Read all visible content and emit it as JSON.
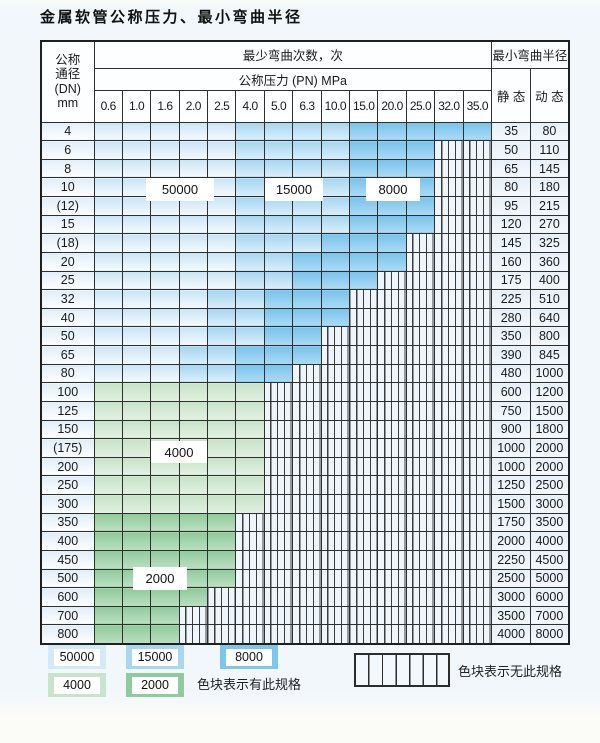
{
  "title": "金属软管公称压力、最小弯曲半径",
  "table": {
    "dn_header_lines": [
      "公称",
      "通径",
      "(DN)",
      "mm"
    ],
    "bend_times_header": "最少弯曲次数，次",
    "pressure_header": "公称压力 (PN) MPa",
    "radius_header": "最小弯曲半径",
    "static_header": "静 态",
    "dynamic_header": "动 态",
    "pressures": [
      "0.6",
      "1.0",
      "1.6",
      "2.0",
      "2.5",
      "4.0",
      "5.0",
      "6.3",
      "10.0",
      "15.0",
      "20.0",
      "25.0",
      "32.0",
      "35.0"
    ],
    "rows": [
      {
        "dn": "4",
        "zones": [
          [
            "z50",
            5
          ],
          [
            "z15",
            4
          ],
          [
            "z8",
            5
          ]
        ],
        "static": "35",
        "dynamic": "80"
      },
      {
        "dn": "6",
        "zones": [
          [
            "z50",
            5
          ],
          [
            "z15",
            4
          ],
          [
            "z8",
            3
          ],
          [
            "x",
            2
          ]
        ],
        "static": "50",
        "dynamic": "110"
      },
      {
        "dn": "8",
        "zones": [
          [
            "z50",
            5
          ],
          [
            "z15",
            4
          ],
          [
            "z8",
            3
          ],
          [
            "x",
            2
          ]
        ],
        "static": "65",
        "dynamic": "145"
      },
      {
        "dn": "10",
        "zones": [
          [
            "z50",
            5
          ],
          [
            "z15",
            4
          ],
          [
            "z8",
            3
          ],
          [
            "x",
            2
          ]
        ],
        "static": "80",
        "dynamic": "180"
      },
      {
        "dn": "(12)",
        "zones": [
          [
            "z50",
            5
          ],
          [
            "z15",
            4
          ],
          [
            "z8",
            3
          ],
          [
            "x",
            2
          ]
        ],
        "static": "95",
        "dynamic": "215"
      },
      {
        "dn": "15",
        "zones": [
          [
            "z50",
            5
          ],
          [
            "z15",
            4
          ],
          [
            "z8",
            3
          ],
          [
            "x",
            2
          ]
        ],
        "static": "120",
        "dynamic": "270"
      },
      {
        "dn": "(18)",
        "zones": [
          [
            "z50",
            5
          ],
          [
            "z15",
            3
          ],
          [
            "z8",
            3
          ],
          [
            "x",
            3
          ]
        ],
        "static": "145",
        "dynamic": "325"
      },
      {
        "dn": "20",
        "zones": [
          [
            "z50",
            5
          ],
          [
            "z15",
            2
          ],
          [
            "z8",
            4
          ],
          [
            "x",
            3
          ]
        ],
        "static": "160",
        "dynamic": "360"
      },
      {
        "dn": "25",
        "zones": [
          [
            "z50",
            5
          ],
          [
            "z15",
            2
          ],
          [
            "z8",
            3
          ],
          [
            "x",
            4
          ]
        ],
        "static": "175",
        "dynamic": "400"
      },
      {
        "dn": "32",
        "zones": [
          [
            "z50",
            4
          ],
          [
            "z15",
            2
          ],
          [
            "z8",
            3
          ],
          [
            "x",
            5
          ]
        ],
        "static": "225",
        "dynamic": "510"
      },
      {
        "dn": "40",
        "zones": [
          [
            "z50",
            4
          ],
          [
            "z15",
            2
          ],
          [
            "z8",
            3
          ],
          [
            "x",
            5
          ]
        ],
        "static": "280",
        "dynamic": "640"
      },
      {
        "dn": "50",
        "zones": [
          [
            "z50",
            4
          ],
          [
            "z15",
            2
          ],
          [
            "z8",
            2
          ],
          [
            "x",
            6
          ]
        ],
        "static": "350",
        "dynamic": "800"
      },
      {
        "dn": "65",
        "zones": [
          [
            "z50",
            3
          ],
          [
            "z15",
            2
          ],
          [
            "z8",
            3
          ],
          [
            "x",
            6
          ]
        ],
        "static": "390",
        "dynamic": "845"
      },
      {
        "dn": "80",
        "zones": [
          [
            "z50",
            3
          ],
          [
            "z15",
            2
          ],
          [
            "z8",
            2
          ],
          [
            "x",
            7
          ]
        ],
        "static": "480",
        "dynamic": "1000"
      },
      {
        "dn": "100",
        "zones": [
          [
            "g4",
            6
          ],
          [
            "x",
            8
          ]
        ],
        "static": "600",
        "dynamic": "1200"
      },
      {
        "dn": "125",
        "zones": [
          [
            "g4",
            6
          ],
          [
            "x",
            8
          ]
        ],
        "static": "750",
        "dynamic": "1500"
      },
      {
        "dn": "150",
        "zones": [
          [
            "g4",
            6
          ],
          [
            "x",
            8
          ]
        ],
        "static": "900",
        "dynamic": "1800"
      },
      {
        "dn": "(175)",
        "zones": [
          [
            "g4",
            6
          ],
          [
            "x",
            8
          ]
        ],
        "static": "1000",
        "dynamic": "2000"
      },
      {
        "dn": "200",
        "zones": [
          [
            "g4",
            6
          ],
          [
            "x",
            8
          ]
        ],
        "static": "1000",
        "dynamic": "2000"
      },
      {
        "dn": "250",
        "zones": [
          [
            "g4",
            6
          ],
          [
            "x",
            8
          ]
        ],
        "static": "1250",
        "dynamic": "2500"
      },
      {
        "dn": "300",
        "zones": [
          [
            "g4",
            6
          ],
          [
            "x",
            8
          ]
        ],
        "static": "1500",
        "dynamic": "3000"
      },
      {
        "dn": "350",
        "zones": [
          [
            "g2",
            5
          ],
          [
            "x",
            9
          ]
        ],
        "static": "1750",
        "dynamic": "3500"
      },
      {
        "dn": "400",
        "zones": [
          [
            "g2",
            5
          ],
          [
            "x",
            9
          ]
        ],
        "static": "2000",
        "dynamic": "4000"
      },
      {
        "dn": "450",
        "zones": [
          [
            "g2",
            5
          ],
          [
            "x",
            9
          ]
        ],
        "static": "2250",
        "dynamic": "4500"
      },
      {
        "dn": "500",
        "zones": [
          [
            "g2",
            5
          ],
          [
            "x",
            9
          ]
        ],
        "static": "2500",
        "dynamic": "5000"
      },
      {
        "dn": "600",
        "zones": [
          [
            "g2",
            4
          ],
          [
            "x",
            10
          ]
        ],
        "static": "3000",
        "dynamic": "6000"
      },
      {
        "dn": "700",
        "zones": [
          [
            "g2",
            3
          ],
          [
            "x",
            11
          ]
        ],
        "static": "3500",
        "dynamic": "7000"
      },
      {
        "dn": "800",
        "zones": [
          [
            "g2",
            3
          ],
          [
            "x",
            11
          ]
        ],
        "static": "4000",
        "dynamic": "8000"
      }
    ]
  },
  "overlays": {
    "l50000": "50000",
    "l15000": "15000",
    "l8000": "8000",
    "l4000": "4000",
    "l2000": "2000"
  },
  "legend": {
    "items": [
      {
        "label": "50000",
        "zone": "z50"
      },
      {
        "label": "15000",
        "zone": "z15"
      },
      {
        "label": "8000",
        "zone": "z8"
      },
      {
        "label": "4000",
        "zone": "g4"
      },
      {
        "label": "2000",
        "zone": "g2"
      }
    ],
    "note_has": "色块表示有此规格",
    "note_none": "色块表示无此规格"
  },
  "colors": {
    "zone_50000": "#d4eaf7",
    "zone_15000": "#a9d7f1",
    "zone_8000": "#7fc6ec",
    "zone_4000": "#c9e4ca",
    "zone_2000": "#8fcc9d",
    "no_spec_bg": "#eef5fb",
    "grid_border": "#2f2f2f"
  }
}
